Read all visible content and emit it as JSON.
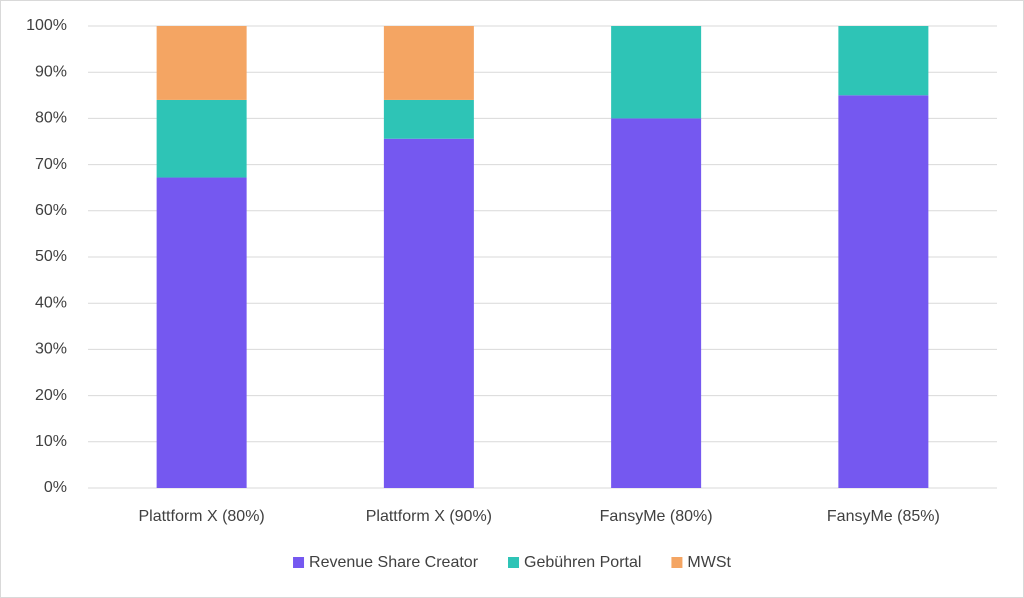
{
  "chart_data": {
    "type": "stacked_bar",
    "categories": [
      "Plattform X (80%)",
      "Plattform X (90%)",
      "FansyMe (80%)",
      "FansyMe (85%)"
    ],
    "series": [
      {
        "name": "Revenue Share Creator",
        "color": "#7558f0",
        "values": [
          67.2,
          75.6,
          80,
          85
        ]
      },
      {
        "name": "Gebühren Portal",
        "color": "#2ec4b6",
        "values": [
          16.8,
          8.4,
          20,
          15
        ]
      },
      {
        "name": "MWSt",
        "color": "#f4a563",
        "values": [
          16.0,
          16.0,
          0,
          0
        ]
      }
    ],
    "ylim": [
      0,
      100
    ],
    "yticks": [
      {
        "value": 0,
        "label": "0%"
      },
      {
        "value": 10,
        "label": "10%"
      },
      {
        "value": 20,
        "label": "20%"
      },
      {
        "value": 30,
        "label": "30%"
      },
      {
        "value": 40,
        "label": "40%"
      },
      {
        "value": 50,
        "label": "50%"
      },
      {
        "value": 60,
        "label": "60%"
      },
      {
        "value": 70,
        "label": "70%"
      },
      {
        "value": 80,
        "label": "80%"
      },
      {
        "value": 90,
        "label": "90%"
      },
      {
        "value": 100,
        "label": "100%"
      }
    ],
    "grid": true,
    "legend": "bottom"
  }
}
